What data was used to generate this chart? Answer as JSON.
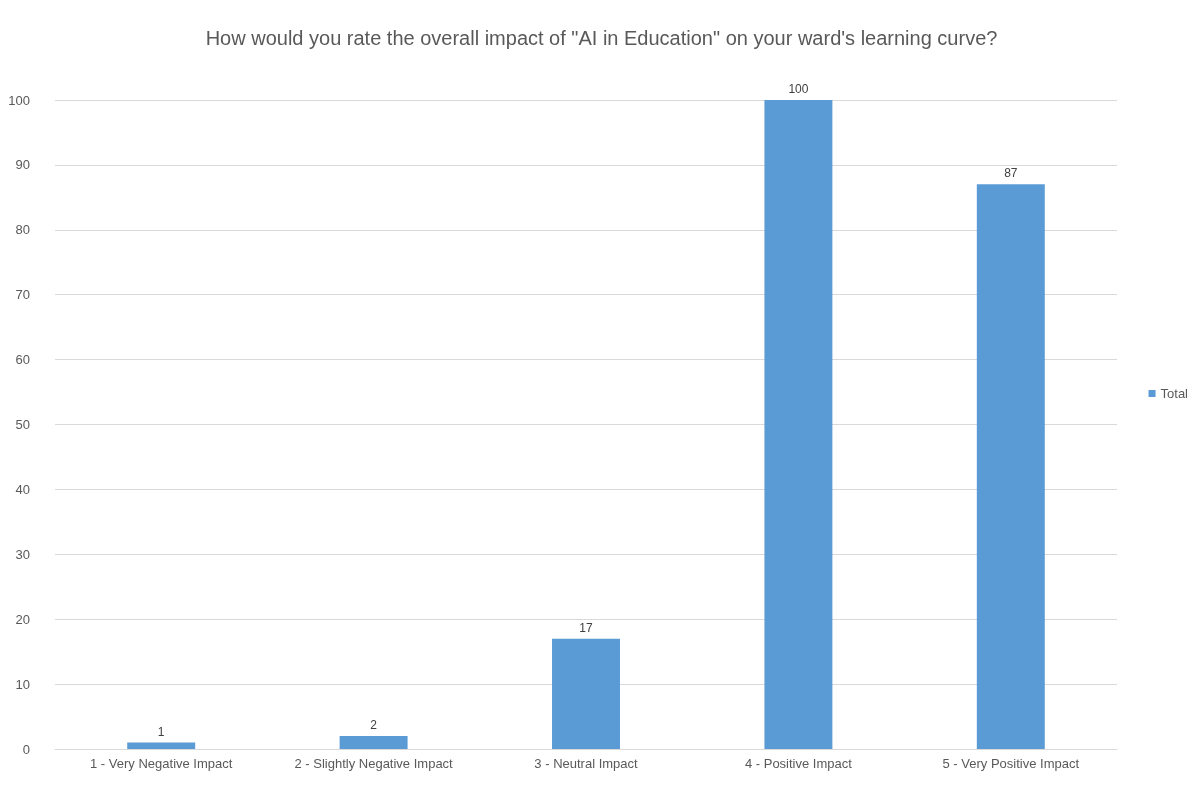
{
  "chart_data": {
    "type": "bar",
    "title": "How would you rate the overall impact of \"AI in Education\" on your ward's learning curve?",
    "categories": [
      "1 - Very Negative Impact",
      "2 - Slightly Negative Impact",
      "3 - Neutral Impact",
      "4 - Positive Impact",
      "5 - Very Positive Impact"
    ],
    "series": [
      {
        "name": "Total",
        "color": "#5b9bd5",
        "values": [
          1,
          2,
          17,
          100,
          87
        ]
      }
    ],
    "ylim": [
      0,
      100
    ],
    "yticks": [
      0,
      10,
      20,
      30,
      40,
      50,
      60,
      70,
      80,
      90,
      100
    ],
    "grid": "y",
    "legend": "right",
    "data_labels": true
  }
}
